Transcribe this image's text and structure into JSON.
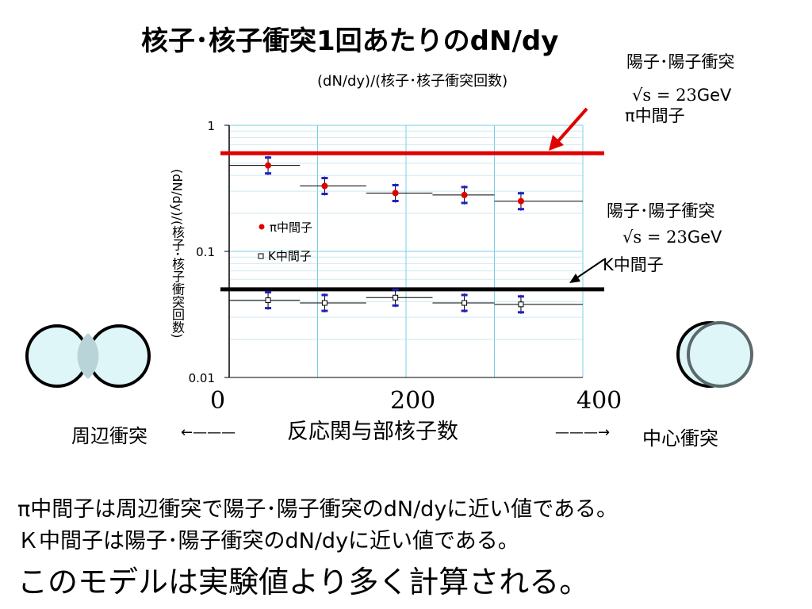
{
  "title": "核子･核子衝突1回あたりのdN/dy",
  "chart_data": {
    "type": "scatter",
    "subtitle": "(dN/dy)/(核子･核子衝突回数)",
    "ylabel": "(dN/dy)/(核子･核子衝突回数)",
    "xlabel": "反応関与部核子数",
    "xlim": [
      0,
      400
    ],
    "ylim": [
      0.01,
      1
    ],
    "yscale": "log",
    "x_ticks": [
      "0",
      "200",
      "400"
    ],
    "y_ticks": [
      "1",
      "0.1",
      "0.01"
    ],
    "grid": true,
    "legend_position": "left",
    "series": [
      {
        "name": "π中間子",
        "color": "#e00000",
        "x": [
          44,
          108,
          188,
          266,
          330
        ],
        "y": [
          0.48,
          0.33,
          0.29,
          0.28,
          0.25
        ],
        "x_ranges": [
          [
            0,
            80
          ],
          [
            80,
            155
          ],
          [
            155,
            230
          ],
          [
            230,
            300
          ],
          [
            300,
            400
          ]
        ]
      },
      {
        "name": "K中間子",
        "color": "#000000",
        "x": [
          44,
          108,
          188,
          266,
          330
        ],
        "y": [
          0.041,
          0.039,
          0.043,
          0.039,
          0.038
        ],
        "x_ranges": [
          [
            0,
            80
          ],
          [
            80,
            155
          ],
          [
            155,
            230
          ],
          [
            230,
            300
          ],
          [
            300,
            400
          ]
        ]
      }
    ],
    "reference_lines": [
      {
        "y": 0.6,
        "color": "#e00000"
      },
      {
        "y": 0.05,
        "color": "#000000"
      }
    ]
  },
  "annotations": {
    "pp_pion_top": {
      "line1": "陽子･陽子衝突",
      "line2_s": "√s = 23",
      "line2_unit": "GeV",
      "line3": "π中間子"
    },
    "pp_pion_mid": {
      "line1": "陽子･陽子衝突",
      "line2_s": "√s = 23",
      "line2_unit": "GeV",
      "line3": "K中間子"
    }
  },
  "peripheral_label": "周辺衝突",
  "central_label": "中心衝突",
  "arrow_glyph_left": "←———",
  "arrow_glyph_right": "———→",
  "text": {
    "line1": "π中間子は周辺衝突で陽子･陽子衝突のdN/dyに近い値である。",
    "line2": "Ｋ中間子は陽子･陽子衝突のdN/dyに近い値である。",
    "line3": "このモデルは実験値より多く計算される。"
  },
  "colors": {
    "accent_red": "#e00000",
    "grid": "#7ad0e6",
    "circle_fill": "#dff6f8"
  }
}
